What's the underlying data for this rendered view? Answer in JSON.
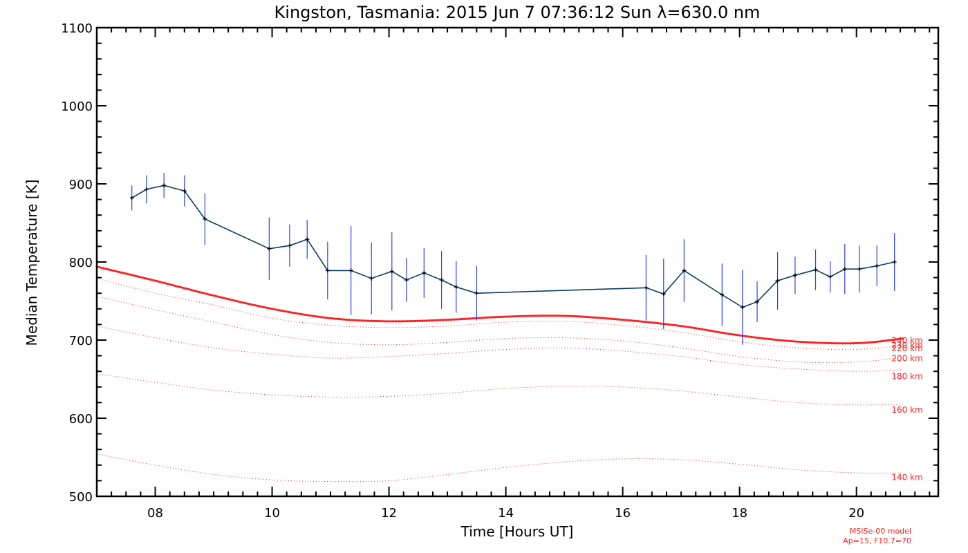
{
  "chart_data": {
    "type": "line",
    "title": "Kingston, Tasmania: 2015 Jun  7 07:36:12 Sun λ=630.0 nm",
    "xlabel": "Time [Hours UT]",
    "ylabel": "Median Temperature [K]",
    "xlim": [
      7.0,
      21.4
    ],
    "ylim": [
      500,
      1100
    ],
    "x_ticks": [
      8,
      10,
      12,
      14,
      16,
      18,
      20
    ],
    "x_tick_labels": [
      "08",
      "10",
      "12",
      "14",
      "16",
      "18",
      "20"
    ],
    "y_ticks": [
      500,
      600,
      700,
      800,
      900,
      1000,
      1100
    ],
    "y_tick_labels": [
      "500",
      "600",
      "700",
      "800",
      "900",
      "1000",
      "1100"
    ],
    "colors": {
      "measurement_line": "#0b3b5c",
      "error_bar": "#2a3cff",
      "point_marker": "#000000",
      "model": "#ff2020"
    },
    "series": [
      {
        "kind": "measurement",
        "x": [
          7.6,
          7.85,
          8.15,
          8.5,
          8.85,
          9.95,
          10.3,
          10.6,
          10.95,
          11.35,
          11.7,
          12.05,
          12.3,
          12.6,
          12.9,
          13.15,
          13.5,
          16.4,
          16.7,
          17.05,
          17.7,
          18.05,
          18.3,
          18.65,
          18.95,
          19.3,
          19.55,
          19.8,
          20.05,
          20.35,
          20.65
        ],
        "y": [
          882,
          893,
          898,
          891,
          855,
          817,
          821,
          829,
          789,
          789,
          779,
          788,
          777,
          786,
          777,
          768,
          760,
          767,
          759,
          789,
          758,
          742,
          749,
          776,
          783,
          790,
          781,
          791,
          791,
          795,
          800
        ],
        "err": [
          16,
          18,
          16,
          20,
          33,
          40,
          27,
          25,
          37,
          57,
          46,
          50,
          28,
          32,
          37,
          33,
          35,
          42,
          45,
          40,
          40,
          48,
          26,
          37,
          24,
          26,
          20,
          32,
          30,
          26,
          37
        ]
      },
      {
        "kind": "model",
        "name": "240 km",
        "highlight": true,
        "x": [
          7,
          8,
          9,
          10,
          11,
          12,
          13,
          14,
          15,
          16,
          17,
          18,
          19,
          20,
          20.8
        ],
        "y": [
          794,
          776,
          757,
          740,
          728,
          724,
          726,
          730,
          731,
          726,
          718,
          706,
          698,
          696,
          702
        ]
      },
      {
        "kind": "model",
        "name": "220 km",
        "x": [
          7,
          8,
          9,
          10,
          11,
          12,
          13,
          14,
          15,
          16,
          17,
          18,
          19,
          20,
          20.8
        ],
        "y": [
          779,
          760,
          745,
          728,
          719,
          716,
          718,
          723,
          724,
          719,
          710,
          698,
          690,
          688,
          693
        ]
      },
      {
        "kind": "model",
        "name": "200 km",
        "x": [
          7,
          8,
          9,
          10,
          11,
          12,
          13,
          14,
          15,
          16,
          17,
          18,
          19,
          20,
          20.8
        ],
        "y": [
          756,
          739,
          723,
          707,
          697,
          694,
          697,
          702,
          703,
          699,
          690,
          679,
          672,
          672,
          678
        ]
      },
      {
        "kind": "model",
        "name": "180 km",
        "x": [
          7,
          8,
          9,
          10,
          11,
          12,
          13,
          14,
          15,
          16,
          17,
          18,
          19,
          20,
          20.8
        ],
        "y": [
          718,
          703,
          690,
          682,
          677,
          679,
          683,
          688,
          690,
          686,
          679,
          669,
          663,
          660,
          662
        ]
      },
      {
        "kind": "model",
        "name": "160 km",
        "x": [
          7,
          8,
          9,
          10,
          11,
          12,
          13,
          14,
          15,
          16,
          17,
          18,
          19,
          20,
          20.8
        ],
        "y": [
          657,
          646,
          636,
          630,
          627,
          628,
          632,
          638,
          641,
          640,
          635,
          627,
          620,
          617,
          618
        ]
      },
      {
        "kind": "model",
        "name": "140 km",
        "x": [
          7,
          8,
          9,
          10,
          11,
          12,
          13,
          14,
          15,
          16,
          17,
          18,
          19,
          20,
          20.8
        ],
        "y": [
          554,
          540,
          528,
          521,
          519,
          520,
          528,
          537,
          544,
          548,
          547,
          541,
          534,
          530,
          530
        ]
      }
    ],
    "model_labels": [
      {
        "text": "240 km",
        "x": 20.6,
        "y": 696
      },
      {
        "text": "230 km",
        "x": 20.6,
        "y": 690
      },
      {
        "text": "220 km",
        "x": 20.6,
        "y": 686
      },
      {
        "text": "200 km",
        "x": 20.6,
        "y": 673
      },
      {
        "text": "180 km",
        "x": 20.6,
        "y": 650
      },
      {
        "text": "160 km",
        "x": 20.6,
        "y": 607
      },
      {
        "text": "140 km",
        "x": 20.6,
        "y": 521
      }
    ],
    "model_note": [
      "MSISe-00 model",
      "Ap=15, F10.7=70"
    ],
    "grid": false,
    "legend": "none"
  }
}
